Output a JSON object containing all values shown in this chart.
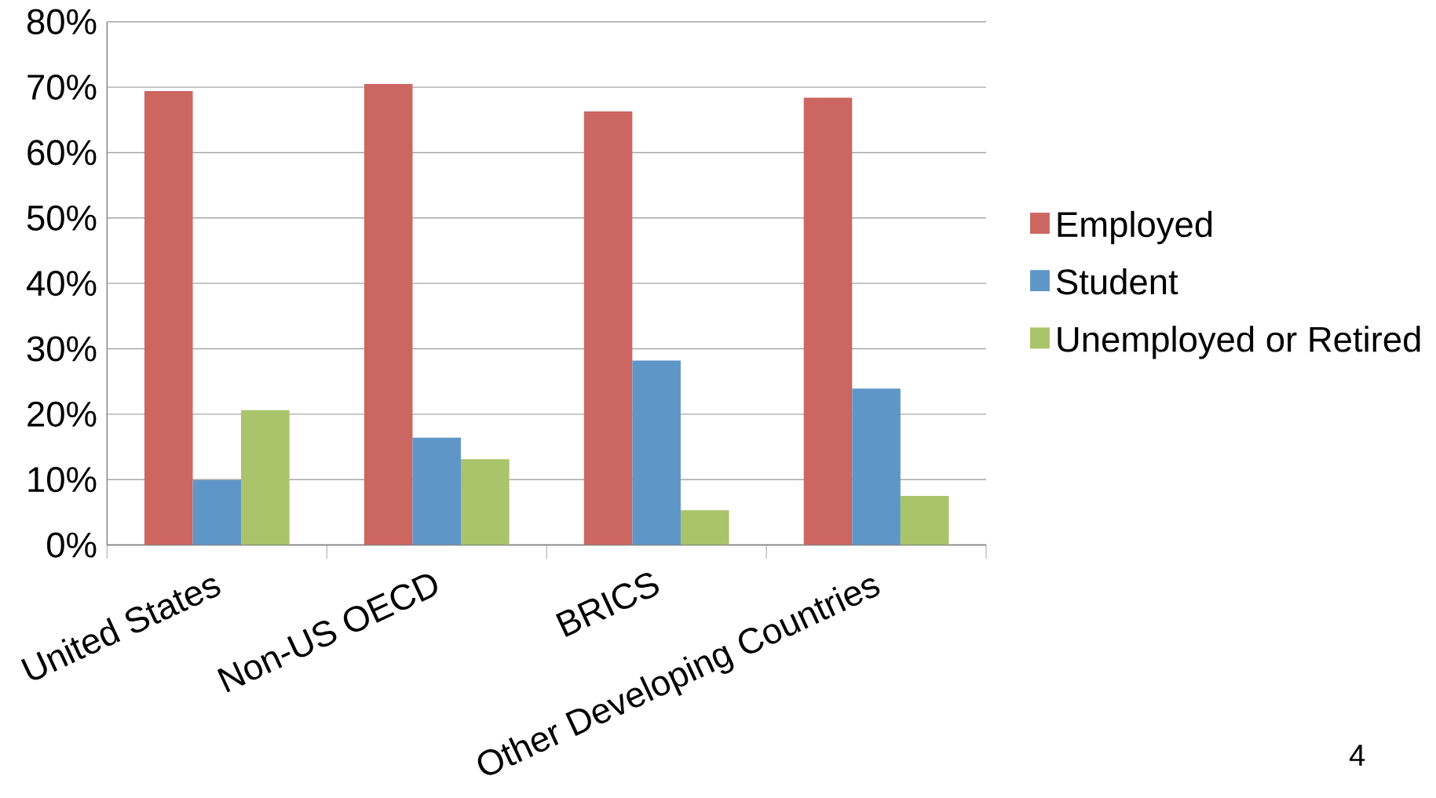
{
  "chart_data": {
    "type": "bar",
    "categories": [
      "United States",
      "Non-US OECD",
      "BRICS",
      "Other Developing Countries"
    ],
    "series": [
      {
        "name": "Employed",
        "color": "#cc6660",
        "values": [
          69.4,
          70.5,
          66.3,
          68.4
        ]
      },
      {
        "name": "Student",
        "color": "#5f96c8",
        "values": [
          9.9,
          16.4,
          28.2,
          23.9
        ]
      },
      {
        "name": "Unemployed or Retired",
        "color": "#a9c46a",
        "values": [
          20.6,
          13.1,
          5.3,
          7.5
        ]
      }
    ],
    "ylim": [
      0,
      80
    ],
    "yticks": [
      {
        "value": 0,
        "label": "0%"
      },
      {
        "value": 10,
        "label": "10%"
      },
      {
        "value": 20,
        "label": "20%"
      },
      {
        "value": 30,
        "label": "30%"
      },
      {
        "value": 40,
        "label": "40%"
      },
      {
        "value": 50,
        "label": "50%"
      },
      {
        "value": 60,
        "label": "60%"
      },
      {
        "value": 70,
        "label": "70%"
      },
      {
        "value": 80,
        "label": "80%"
      }
    ],
    "grid": "y",
    "legend": "right",
    "annotations": [
      "4"
    ]
  }
}
